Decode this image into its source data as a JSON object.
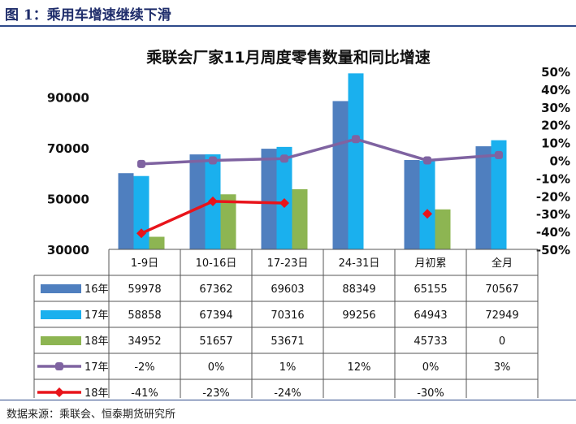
{
  "figure_title": "图 1：乘用车增速继续下滑",
  "source": "数据来源：乘联会、恒泰期货研究所",
  "colors": {
    "s16": "#4f7fbf",
    "s17": "#1ab0ee",
    "s18": "#8db552",
    "g17": "#7f63a1",
    "g18": "#e8141b",
    "rule": "#2e4a8a",
    "title": "#1f2d6b"
  },
  "chart_data": {
    "type": "bar",
    "title": "乘联会厂家11月周度零售数量和同比增速",
    "categories": [
      "1-9日",
      "10-16日",
      "17-23日",
      "24-31日",
      "月初累",
      "全月"
    ],
    "left_axis": {
      "ylim": [
        30000,
        100000
      ],
      "ticks": [
        "90000",
        "70000",
        "50000",
        "30000"
      ],
      "tick_values": [
        90000,
        70000,
        50000,
        30000
      ]
    },
    "right_axis": {
      "ylim": [
        -50,
        50
      ],
      "ticks": [
        "50%",
        "40%",
        "30%",
        "20%",
        "10%",
        "0%",
        "-10%",
        "-20%",
        "-30%",
        "-40%",
        "-50%"
      ],
      "tick_values": [
        50,
        40,
        30,
        20,
        10,
        0,
        -10,
        -20,
        -30,
        -40,
        -50
      ]
    },
    "bar_series": [
      {
        "name": "16年",
        "values": [
          59978,
          67362,
          69603,
          88349,
          65155,
          70567
        ],
        "labels": [
          "59978",
          "67362",
          "69603",
          "88349",
          "65155",
          "70567"
        ]
      },
      {
        "name": "17年",
        "values": [
          58858,
          67394,
          70316,
          99256,
          64943,
          72949
        ],
        "labels": [
          "58858",
          "67394",
          "70316",
          "99256",
          "64943",
          "72949"
        ]
      },
      {
        "name": "18年",
        "values": [
          34952,
          51657,
          53671,
          null,
          45733,
          0
        ],
        "labels": [
          "34952",
          "51657",
          "53671",
          "",
          "45733",
          "0"
        ]
      }
    ],
    "line_series": [
      {
        "name": "17年",
        "values": [
          -2,
          0,
          1,
          12,
          0,
          3
        ],
        "labels": [
          "-2%",
          "0%",
          "1%",
          "12%",
          "0%",
          "3%"
        ]
      },
      {
        "name": "18年",
        "values": [
          -41,
          -23,
          -24,
          null,
          -30,
          null
        ],
        "labels": [
          "-41%",
          "-23%",
          "-24%",
          "",
          "-30%",
          ""
        ]
      }
    ]
  }
}
